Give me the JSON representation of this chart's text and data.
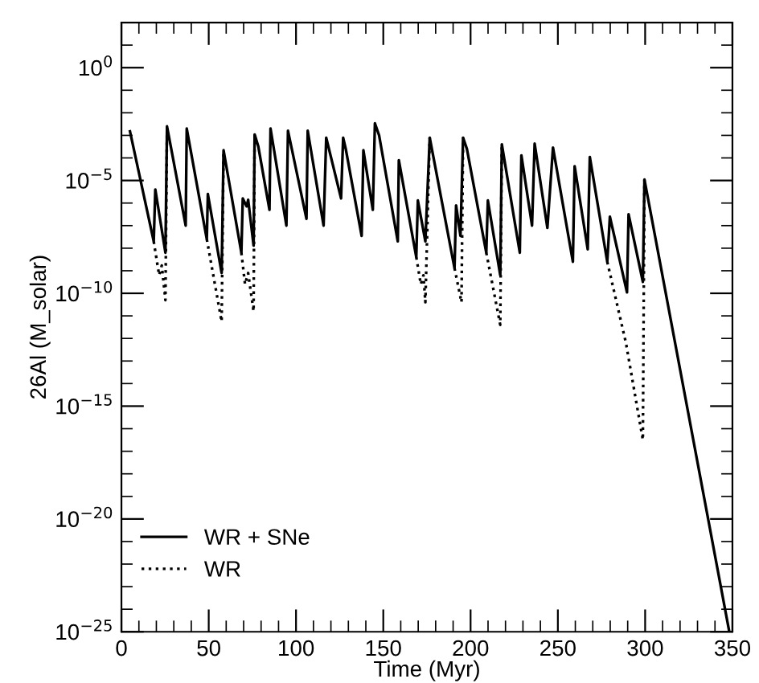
{
  "chart_data": {
    "type": "line",
    "xlabel": "Time (Myr)",
    "ylabel": "26Al (M_solar)",
    "log": "y",
    "grid": false,
    "legend": "bottom left",
    "xlim": [
      0,
      350
    ],
    "ylim": [
      1e-25,
      100
    ],
    "xticks": [
      0,
      {
        "value": 10,
        "label": null
      },
      {
        "value": 20,
        "label": null
      },
      {
        "value": 30,
        "label": null
      },
      {
        "value": 40,
        "label": null
      },
      50,
      {
        "value": 60,
        "label": null
      },
      {
        "value": 70,
        "label": null
      },
      {
        "value": 80,
        "label": null
      },
      {
        "value": 90,
        "label": null
      },
      100,
      {
        "value": 110,
        "label": null
      },
      {
        "value": 120,
        "label": null
      },
      {
        "value": 130,
        "label": null
      },
      {
        "value": 140,
        "label": null
      },
      150,
      {
        "value": 160,
        "label": null
      },
      {
        "value": 170,
        "label": null
      },
      {
        "value": 180,
        "label": null
      },
      {
        "value": 190,
        "label": null
      },
      200,
      {
        "value": 210,
        "label": null
      },
      {
        "value": 220,
        "label": null
      },
      {
        "value": 230,
        "label": null
      },
      {
        "value": 240,
        "label": null
      },
      250,
      {
        "value": 260,
        "label": null
      },
      {
        "value": 270,
        "label": null
      },
      {
        "value": 280,
        "label": null
      },
      {
        "value": 290,
        "label": null
      },
      300,
      {
        "value": 310,
        "label": null
      },
      {
        "value": 320,
        "label": null
      },
      {
        "value": 330,
        "label": null
      },
      {
        "value": 340,
        "label": null
      },
      350
    ],
    "yticks": [
      {
        "value": 1e-25,
        "label": "10$^{−25}$"
      },
      {
        "value": 1e-24,
        "label": null
      },
      {
        "value": 1e-23,
        "label": null
      },
      {
        "value": 1e-22,
        "label": null
      },
      {
        "value": 1e-21,
        "label": null
      },
      {
        "value": 1e-20,
        "label": "10$^{−20}$"
      },
      {
        "value": 1e-19,
        "label": null
      },
      {
        "value": 1e-18,
        "label": null
      },
      {
        "value": 1e-17,
        "label": null
      },
      {
        "value": 1e-16,
        "label": null
      },
      {
        "value": 1e-15,
        "label": "10$^{−15}$"
      },
      {
        "value": 1e-14,
        "label": null
      },
      {
        "value": 1e-13,
        "label": null
      },
      {
        "value": 1e-12,
        "label": null
      },
      {
        "value": 1e-11,
        "label": null
      },
      {
        "value": 1e-10,
        "label": "10$^{−10}$"
      },
      {
        "value": 1e-09,
        "label": null
      },
      {
        "value": 1e-08,
        "label": null
      },
      {
        "value": 1e-07,
        "label": null
      },
      {
        "value": 1e-06,
        "label": null
      },
      {
        "value": 1e-05,
        "label": "10$^{−5}$"
      },
      {
        "value": 0.0001,
        "label": null
      },
      {
        "value": 0.001,
        "label": null
      },
      {
        "value": 0.01,
        "label": null
      },
      {
        "value": 0.1,
        "label": null
      },
      {
        "value": 1,
        "label": "10$^{0}$"
      },
      {
        "value": 10,
        "label": null
      }
    ],
    "series": [
      {
        "name": "WR + SNe",
        "color": "#000000",
        "line_style": "solid",
        "marker": "none",
        "x": [
          4.9,
          18.5,
          19.4,
          25.2,
          26.1,
          36.8,
          37.4,
          48.9,
          49.5,
          57.4,
          58.5,
          68.7,
          69.5,
          71.7,
          72.6,
          75.7,
          76.3,
          78.4,
          84.8,
          85.4,
          94.5,
          95.4,
          106,
          106.7,
          115.8,
          117.3,
          125.8,
          127,
          128.5,
          137.6,
          138.6,
          144,
          145.2,
          147.6,
          158.3,
          158.9,
          168.9,
          169.8,
          174.1,
          176.6,
          190.8,
          191.7,
          194.2,
          195.7,
          197.9,
          209,
          209.9,
          217,
          217.9,
          228.2,
          229.1,
          235.2,
          236.7,
          244,
          247.2,
          258.6,
          259.6,
          267.1,
          268.3,
          278.3,
          279.8,
          289.6,
          290.5,
          298.7,
          299.6,
          348.2
        ],
        "values": [
          0.0015,
          2e-08,
          4e-06,
          6.3e-09,
          0.0025,
          1e-07,
          0.002,
          2.5e-08,
          2.5e-06,
          7.9e-10,
          0.00022,
          6.3e-09,
          1.6e-06,
          7.1e-07,
          1.4e-06,
          1.3e-08,
          0.0011,
          0.00032,
          5e-07,
          0.002,
          1e-07,
          0.0016,
          2e-07,
          0.0016,
          1e-07,
          0.00079,
          1.6e-06,
          0.00079,
          0.00025,
          3.5e-08,
          0.00022,
          5e-07,
          0.0034,
          0.001,
          2e-08,
          7.9e-05,
          4e-09,
          1.3e-06,
          2e-08,
          0.00079,
          1.3e-09,
          7.9e-07,
          3.5e-08,
          0.00079,
          0.00025,
          6.3e-09,
          1.3e-06,
          6.3e-10,
          0.0004,
          6.3e-09,
          0.00013,
          1e-07,
          0.00043,
          7.9e-08,
          0.00029,
          2.5e-09,
          4.3e-05,
          8.9e-09,
          0.00011,
          2.5e-09,
          2.5e-07,
          1.1e-10,
          3.2e-07,
          3.2e-10,
          1.1e-05,
          1e-25
        ]
      },
      {
        "name": "WR",
        "color": "#000000",
        "line_style": "dotted",
        "marker": "none",
        "x": [
          18.5,
          21.6,
          23.1,
          25.2,
          26.1,
          30,
          48.9,
          57.4,
          58.5,
          60,
          68.7,
          70.8,
          72.6,
          75.7,
          76.3,
          80,
          168.9,
          171.5,
          173,
          174.1,
          176.6,
          180,
          190.8,
          194.8,
          195.7,
          200,
          209,
          217,
          217.9,
          220,
          278.3,
          289,
          298.7,
          299.6
        ],
        "values": [
          2e-08,
          6.3e-10,
          1.7e-09,
          5e-11,
          0.0025,
          null,
          2.5e-08,
          5.6e-12,
          0.00022,
          null,
          6.3e-09,
          2.5e-10,
          7.9e-10,
          1.6e-11,
          0.0011,
          null,
          4e-09,
          2.5e-10,
          6.3e-10,
          4e-11,
          0.00079,
          null,
          1.3e-09,
          4e-11,
          0.00079,
          null,
          6.3e-09,
          4e-12,
          0.0004,
          null,
          2.5e-09,
          6.3e-13,
          3.2e-17,
          1.1e-05
        ]
      }
    ]
  }
}
